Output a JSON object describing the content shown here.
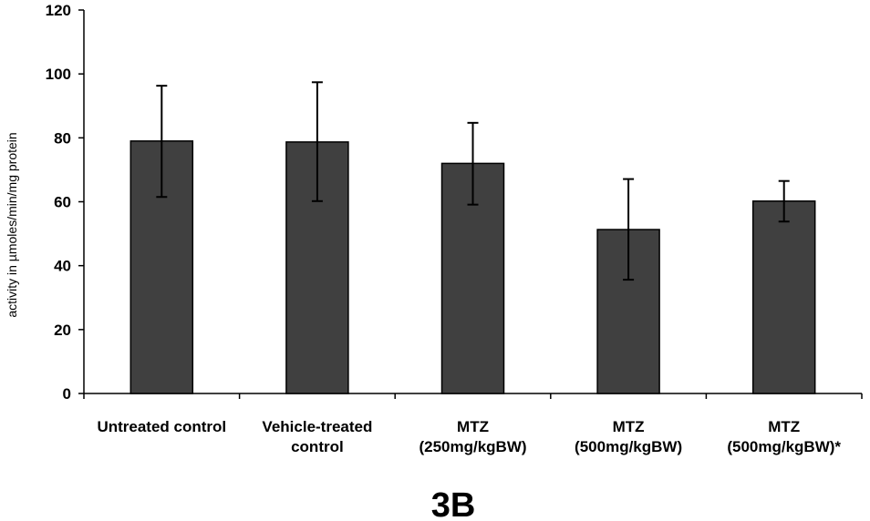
{
  "chart_data": {
    "type": "bar",
    "title": "",
    "panel_label": "3B",
    "xlabel": "",
    "ylabel": "activity in µmoles/min/mg protein",
    "ylim": [
      0,
      120
    ],
    "yticks": [
      0,
      20,
      40,
      60,
      80,
      100,
      120
    ],
    "grid": false,
    "legend": "none",
    "bar_color": "#404040",
    "categories": [
      [
        "Untreated control"
      ],
      [
        "Vehicle-treated",
        "control"
      ],
      [
        "MTZ",
        "(250mg/kgBW)"
      ],
      [
        "MTZ",
        "(500mg/kgBW)"
      ],
      [
        "MTZ",
        "(500mg/kgBW)*"
      ]
    ],
    "values": [
      79,
      78.7,
      72,
      51.3,
      60.2
    ],
    "error_upper": [
      96.3,
      97.4,
      84.7,
      67.1,
      66.5
    ],
    "error_lower": [
      61.5,
      60.2,
      59.1,
      35.6,
      53.8
    ]
  }
}
